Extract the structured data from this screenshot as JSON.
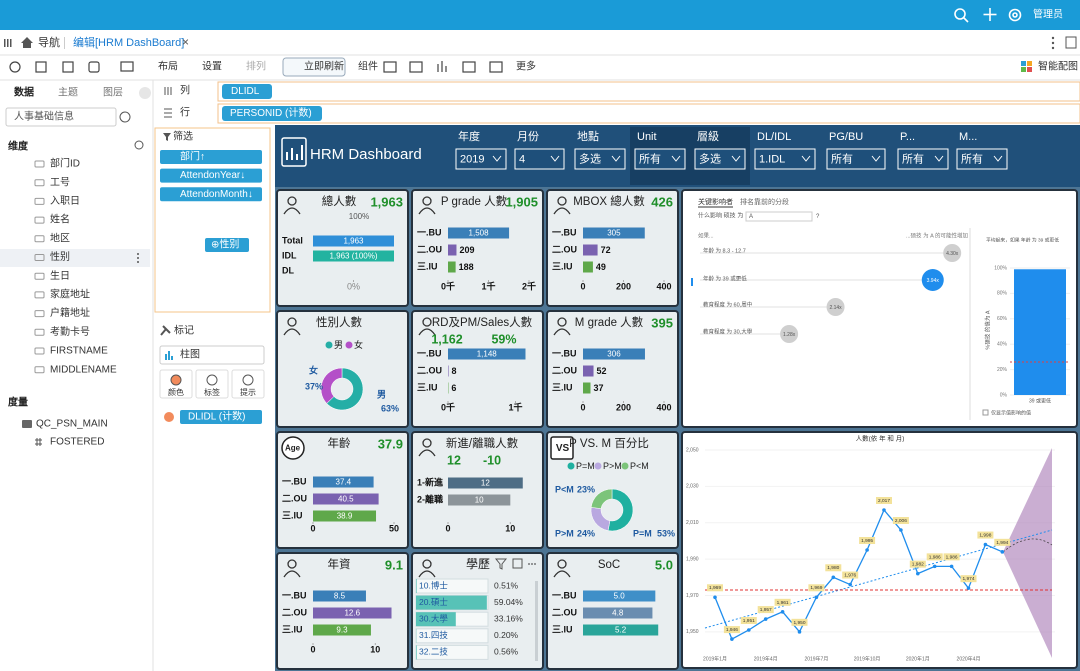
{
  "topbar": {
    "user": "管理员"
  },
  "tabs": {
    "nav": "导航",
    "active": "编辑[HRM DashBoard]",
    "close": "×"
  },
  "toolbar": {
    "items": [
      "布局",
      "设置",
      "排列",
      "立即刷新",
      "组件",
      "更多"
    ],
    "right": "智能配图"
  },
  "left": {
    "tabs": [
      "数据",
      "主题",
      "图层"
    ],
    "dataset": "人事基础信息",
    "dim_title": "维度",
    "fields": [
      "部门ID",
      "工号",
      "入职日",
      "姓名",
      "地区",
      "性别",
      "生日",
      "家庭地址",
      "户籍地址",
      "考勤卡号",
      "FIRSTNAME",
      "MIDDLENAME"
    ],
    "measure_title": "度量",
    "table": "QC_PSN_MAIN",
    "measure": "FOSTERED"
  },
  "mid": {
    "filter_title": "筛选",
    "filters": [
      "部门↑",
      "AttendonYear↓",
      "AttendonMonth↓"
    ],
    "add": "⊕性别",
    "mark_title": "标记",
    "chart_type": "柱图",
    "mark_buttons": [
      "颜色",
      "标签",
      "提示"
    ],
    "measure": "DLIDL (计数)"
  },
  "shelf": {
    "col_label": "列",
    "col": "DLIDL",
    "row_label": "行",
    "row": "PERSONID (计数)"
  },
  "dashboard": {
    "title": "HRM Dashboard",
    "filters": [
      {
        "label": "年度",
        "value": "2019"
      },
      {
        "label": "月份",
        "value": "4"
      },
      {
        "label": "地點",
        "value": "多选"
      },
      {
        "label": "Unit",
        "value": "所有"
      },
      {
        "label": "層級",
        "value": "多选"
      },
      {
        "label": "DL/IDL",
        "value": "1.IDL"
      },
      {
        "label": "PG/BU",
        "value": "所有"
      },
      {
        "label": "P...",
        "value": "所有"
      },
      {
        "label": "M...",
        "value": "所有"
      }
    ],
    "cards": [
      {
        "kind": "bars",
        "title": "總人數",
        "kpi": [
          "1,963"
        ],
        "sub": "100%",
        "categories": [
          "Total",
          "IDL",
          "DL"
        ],
        "values": [
          1963,
          1963,
          null
        ],
        "value_labels": [
          "1,963",
          "1,963 (100%)",
          null
        ],
        "xlim": [
          0,
          1963
        ],
        "xticks": [
          {
            "value": 0,
            "label": "0%"
          }
        ]
      },
      {
        "kind": "bars",
        "title": "P grade 人數",
        "kpi": [
          "1,905"
        ],
        "categories": [
          "一.BU",
          "二.OU",
          "三.IU"
        ],
        "values": [
          1508,
          209,
          188
        ],
        "value_labels": [
          "1,508",
          null,
          null
        ],
        "xlim": [
          0,
          2000
        ],
        "xticks": [
          {
            "value": 0,
            "label": "0千"
          },
          {
            "value": 1000,
            "label": "1千"
          },
          {
            "value": 2000,
            "label": "2千"
          }
        ]
      },
      {
        "kind": "bars",
        "title": "MBOX 總人數",
        "kpi": [
          "426"
        ],
        "categories": [
          "一.BU",
          "二.OU",
          "三.IU"
        ],
        "values": [
          305,
          72,
          49
        ],
        "xlim": [
          0,
          400
        ],
        "xticks": [
          0,
          200,
          400
        ]
      },
      {
        "kind": "donut",
        "title": "性別人數",
        "legend": [
          "男",
          "女"
        ],
        "values": [
          63,
          37
        ],
        "value_labels": [
          "63%",
          "37%"
        ],
        "colors": [
          "#25aea6",
          "#b450c8"
        ]
      },
      {
        "kind": "bars",
        "title": "RD及PM/Sales人數",
        "kpi": [
          "1,162",
          "59%"
        ],
        "categories": [
          "一.BU",
          "二.OU",
          "三.IU"
        ],
        "values": [
          1148,
          8,
          6
        ],
        "value_labels": [
          "1,148",
          null,
          null
        ],
        "xlim": [
          0,
          1200
        ],
        "xticks": [
          {
            "value": 0,
            "label": "0千"
          },
          {
            "value": 1000,
            "label": "1千"
          }
        ]
      },
      {
        "kind": "bars",
        "title": "M grade 人數",
        "kpi": [
          "395"
        ],
        "categories": [
          "一.BU",
          "二.OU",
          "三.IU"
        ],
        "values": [
          306,
          52,
          37
        ],
        "xlim": [
          0,
          400
        ],
        "xticks": [
          0,
          200,
          400
        ]
      },
      {
        "kind": "bars",
        "title": "年齡",
        "icon": "Age",
        "kpi": [
          "37.9"
        ],
        "categories": [
          "一.BU",
          "二.OU",
          "三.IU"
        ],
        "values": [
          37.4,
          40.5,
          38.9
        ],
        "xlim": [
          0,
          50
        ],
        "xticks": [
          0,
          50
        ]
      },
      {
        "kind": "bars",
        "title": "新進/離職人數",
        "kpi": [
          "12",
          "-10"
        ],
        "categories": [
          "1-新進",
          "2-離職"
        ],
        "values": [
          12,
          10
        ],
        "xlim": [
          0,
          13
        ],
        "xticks": [
          0,
          10
        ]
      },
      {
        "kind": "donut",
        "title": "P VS. M 百分比",
        "icon": "VS",
        "legend": [
          "P=M",
          "P>M",
          "P<M"
        ],
        "values": [
          53,
          24,
          23
        ],
        "value_labels": [
          "53%",
          "24%",
          "23%"
        ],
        "colors": [
          "#1fb0a0",
          "#b9a8e0",
          "#7cc47a"
        ]
      },
      {
        "kind": "bars",
        "title": "年資",
        "kpi": [
          "9.1"
        ],
        "categories": [
          "一.BU",
          "二.OU",
          "三.IU"
        ],
        "values": [
          8.5,
          12.6,
          9.3
        ],
        "xlim": [
          0,
          13
        ],
        "xticks": [
          0,
          10
        ]
      },
      {
        "kind": "table",
        "title": "學歷",
        "categories": [
          "10.博士",
          "20.碩士",
          "30.大學",
          "31.四技",
          "32.二技"
        ],
        "values": [
          0.51,
          59.04,
          33.16,
          0.2,
          0.56
        ],
        "value_labels": [
          "0.51%",
          "59.04%",
          "33.16%",
          "0.20%",
          "0.56%"
        ],
        "xlim": [
          0,
          60
        ]
      },
      {
        "kind": "bars",
        "title": "SoC",
        "kpi": [
          "5.0"
        ],
        "categories": [
          "一.BU",
          "二.OU",
          "三.IU"
        ],
        "values": [
          5,
          4.8,
          5.2
        ],
        "value_labels": [
          "5.0",
          null,
          null
        ],
        "xlim": [
          0,
          5.6
        ],
        "xticks": []
      }
    ],
    "ki": {
      "tab1": "关键影响者",
      "tab2": "排名靠前的分段",
      "question": "什么影响 硕技 为",
      "select": "A",
      "help": "?",
      "head_left": "如果...",
      "head_right": "...硕技 为 A 的可能性增加",
      "items": [
        {
          "label": "年龄 为 8.3 - 12.7",
          "value": 4.3,
          "value_label": "4.30x"
        },
        {
          "label": "年龄 为 39 或更低",
          "value": 3.94,
          "value_label": "3.94x"
        },
        {
          "label": "教育程度 为 60,周中",
          "value": 2.14,
          "value_label": "2.14x"
        },
        {
          "label": "教育程度 为 30,大學",
          "value": 1.28,
          "value_label": "1.28x"
        }
      ],
      "side_title": "平均起来，如果 年龄 为 39 或更低",
      "side_axis": "%硕技 的值为 A",
      "side_bar_label": "39 或更低",
      "side_value": 99,
      "side_ylim": [
        0,
        100
      ],
      "side_yticks": [
        {
          "value": 100,
          "label": "100%"
        },
        {
          "value": 80,
          "label": "80%"
        },
        {
          "value": 60,
          "label": "60%"
        },
        {
          "value": 40,
          "label": "40%"
        },
        {
          "value": 20,
          "label": "20%"
        },
        {
          "value": 0,
          "label": "0%"
        }
      ],
      "checkbox": "仅显示值影响的值"
    },
    "trend": {
      "title": "人數(依 年 和 月)",
      "categories": [
        "2019年1月",
        null,
        null,
        "2019年4月",
        null,
        null,
        "2019年7月",
        null,
        null,
        "2019年10月",
        null,
        null,
        "2020年1月",
        null,
        null,
        "2020年4月",
        null,
        null
      ],
      "values": [
        1969,
        1946,
        1951,
        1957,
        1961,
        1950,
        1969,
        1980,
        1976,
        1995,
        2017,
        2006,
        1982,
        1986,
        1986,
        1974,
        1998,
        1994
      ],
      "value_labels": [
        "1,969",
        "1,946",
        "1,951",
        "1,957",
        "1,961",
        "1,950",
        "1,969",
        "1,980",
        "1,976",
        "1,995",
        "2,017",
        "2,006",
        "1,982",
        "1,986",
        "1,986",
        "1,974",
        "1,998",
        "1,994"
      ],
      "ylim": [
        1940,
        2050
      ],
      "yticks": [
        {
          "value": 1950,
          "label": "1,950"
        },
        {
          "value": 1970,
          "label": "1,970"
        },
        {
          "value": 1990,
          "label": "1,990"
        },
        {
          "value": 2010,
          "label": "2,010"
        },
        {
          "value": 2030,
          "label": "2,030"
        },
        {
          "value": 2050,
          "label": "2,050"
        }
      ]
    }
  }
}
